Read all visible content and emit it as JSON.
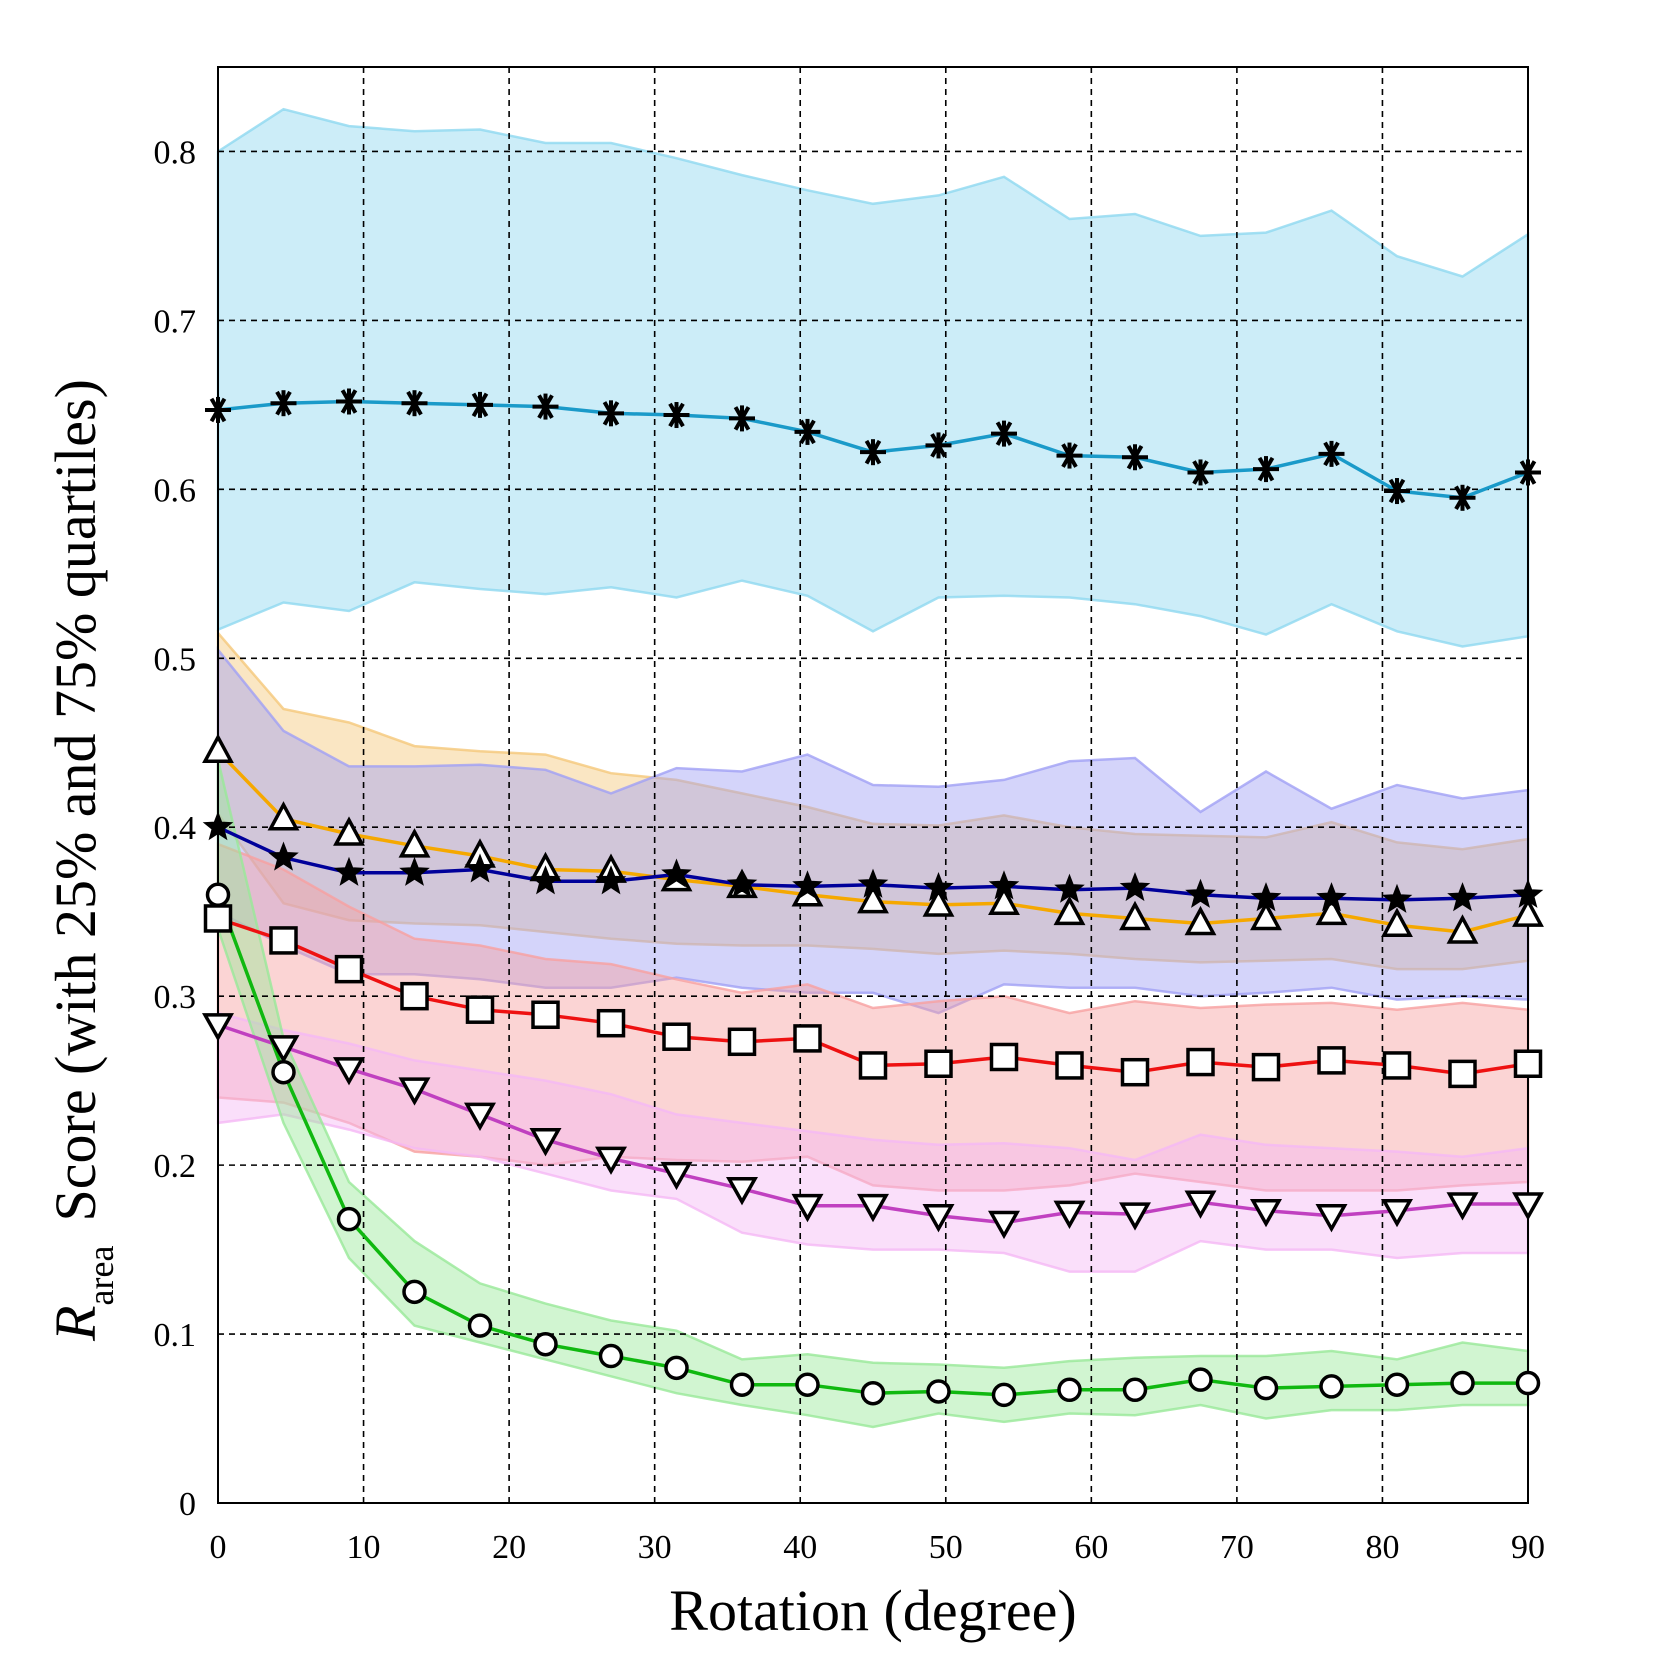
{
  "chart_data": {
    "type": "line",
    "xlabel": "Rotation (degree)",
    "ylabel_symbol": "R",
    "ylabel_subscript": "area",
    "ylabel_text": "Score (with 25% and 75% quartiles)",
    "xlim": [
      0,
      90
    ],
    "ylim": [
      0,
      0.85
    ],
    "xticks": [
      0,
      10,
      20,
      30,
      40,
      50,
      60,
      70,
      80,
      90
    ],
    "yticks": [
      0,
      0.1,
      0.2,
      0.3,
      0.4,
      0.5,
      0.6,
      0.7,
      0.8
    ],
    "xtick_labels": [
      "0",
      "10",
      "20",
      "30",
      "40",
      "50",
      "60",
      "70",
      "80",
      "90"
    ],
    "ytick_labels": [
      "0",
      "0.1",
      "0.2",
      "0.3",
      "0.4",
      "0.5",
      "0.6",
      "0.7",
      "0.8"
    ],
    "grid": true,
    "x": [
      0,
      4.5,
      9,
      13.5,
      18,
      22.5,
      27,
      31.5,
      36,
      40.5,
      45,
      49.5,
      54,
      58.5,
      63,
      67.5,
      72,
      76.5,
      81,
      85.5,
      90
    ],
    "series": [
      {
        "marker": "asterisk",
        "color": "#1a9ac9",
        "band_color": "#8fd8f0",
        "values": [
          0.647,
          0.651,
          0.652,
          0.651,
          0.65,
          0.649,
          0.645,
          0.644,
          0.642,
          0.634,
          0.622,
          0.626,
          0.633,
          0.62,
          0.619,
          0.61,
          0.612,
          0.621,
          0.599,
          0.595,
          0.61
        ],
        "q75": [
          0.8,
          0.825,
          0.815,
          0.812,
          0.813,
          0.805,
          0.805,
          0.796,
          0.786,
          0.777,
          0.769,
          0.774,
          0.785,
          0.76,
          0.763,
          0.75,
          0.752,
          0.765,
          0.738,
          0.726,
          0.751
        ],
        "q25": [
          0.517,
          0.533,
          0.528,
          0.545,
          0.541,
          0.538,
          0.542,
          0.536,
          0.546,
          0.537,
          0.516,
          0.536,
          0.537,
          0.536,
          0.532,
          0.525,
          0.514,
          0.532,
          0.516,
          0.507,
          0.513
        ]
      },
      {
        "marker": "triangle-up",
        "color": "#f5a800",
        "band_color": "#f5c87a",
        "values": [
          0.445,
          0.405,
          0.396,
          0.389,
          0.383,
          0.375,
          0.374,
          0.369,
          0.365,
          0.36,
          0.356,
          0.354,
          0.355,
          0.349,
          0.346,
          0.343,
          0.346,
          0.349,
          0.342,
          0.338,
          0.348
        ],
        "q75": [
          0.515,
          0.47,
          0.462,
          0.448,
          0.445,
          0.443,
          0.432,
          0.428,
          0.42,
          0.412,
          0.402,
          0.401,
          0.407,
          0.4,
          0.396,
          0.395,
          0.394,
          0.403,
          0.391,
          0.387,
          0.393
        ],
        "q25": [
          0.408,
          0.355,
          0.345,
          0.343,
          0.342,
          0.338,
          0.334,
          0.331,
          0.33,
          0.33,
          0.328,
          0.325,
          0.327,
          0.325,
          0.322,
          0.32,
          0.321,
          0.322,
          0.316,
          0.316,
          0.321
        ]
      },
      {
        "marker": "star",
        "color": "#00009a",
        "band_color": "#a0a0f5",
        "values": [
          0.4,
          0.382,
          0.373,
          0.373,
          0.375,
          0.368,
          0.368,
          0.372,
          0.366,
          0.365,
          0.366,
          0.364,
          0.365,
          0.363,
          0.364,
          0.36,
          0.358,
          0.358,
          0.357,
          0.358,
          0.36
        ],
        "q75": [
          0.505,
          0.457,
          0.436,
          0.436,
          0.437,
          0.434,
          0.42,
          0.435,
          0.433,
          0.443,
          0.425,
          0.424,
          0.428,
          0.439,
          0.441,
          0.409,
          0.433,
          0.411,
          0.425,
          0.417,
          0.422
        ],
        "q25": [
          0.35,
          0.33,
          0.313,
          0.313,
          0.31,
          0.305,
          0.305,
          0.311,
          0.305,
          0.302,
          0.302,
          0.29,
          0.307,
          0.305,
          0.305,
          0.3,
          0.302,
          0.305,
          0.298,
          0.3,
          0.298
        ]
      },
      {
        "marker": "square",
        "color": "#ee1111",
        "band_color": "#f7a0a0",
        "values": [
          0.346,
          0.333,
          0.316,
          0.3,
          0.292,
          0.289,
          0.284,
          0.276,
          0.273,
          0.275,
          0.259,
          0.26,
          0.264,
          0.259,
          0.255,
          0.261,
          0.258,
          0.262,
          0.259,
          0.254,
          0.26
        ],
        "q75": [
          0.39,
          0.375,
          0.353,
          0.334,
          0.33,
          0.322,
          0.319,
          0.31,
          0.302,
          0.307,
          0.293,
          0.297,
          0.3,
          0.29,
          0.297,
          0.293,
          0.295,
          0.296,
          0.292,
          0.296,
          0.292
        ],
        "q25": [
          0.24,
          0.237,
          0.225,
          0.208,
          0.205,
          0.2,
          0.205,
          0.203,
          0.202,
          0.205,
          0.188,
          0.185,
          0.185,
          0.188,
          0.195,
          0.19,
          0.185,
          0.185,
          0.185,
          0.188,
          0.19
        ]
      },
      {
        "marker": "triangle-down",
        "color": "#c040c0",
        "band_color": "#f5b8f5",
        "values": [
          0.283,
          0.27,
          0.257,
          0.245,
          0.23,
          0.215,
          0.204,
          0.195,
          0.186,
          0.176,
          0.176,
          0.17,
          0.166,
          0.172,
          0.171,
          0.178,
          0.173,
          0.17,
          0.173,
          0.177,
          0.177
        ],
        "q75": [
          0.29,
          0.28,
          0.272,
          0.262,
          0.256,
          0.25,
          0.242,
          0.23,
          0.225,
          0.22,
          0.215,
          0.212,
          0.213,
          0.21,
          0.203,
          0.218,
          0.212,
          0.21,
          0.208,
          0.205,
          0.21
        ],
        "q25": [
          0.225,
          0.23,
          0.221,
          0.21,
          0.205,
          0.195,
          0.185,
          0.18,
          0.16,
          0.153,
          0.15,
          0.15,
          0.148,
          0.137,
          0.137,
          0.155,
          0.15,
          0.15,
          0.145,
          0.148,
          0.148
        ]
      },
      {
        "marker": "circle",
        "color": "#10b810",
        "band_color": "#98e898",
        "values": [
          0.36,
          0.255,
          0.168,
          0.125,
          0.105,
          0.094,
          0.087,
          0.08,
          0.07,
          0.07,
          0.065,
          0.066,
          0.064,
          0.067,
          0.067,
          0.073,
          0.068,
          0.069,
          0.07,
          0.071,
          0.071
        ],
        "q75": [
          0.44,
          0.275,
          0.19,
          0.155,
          0.13,
          0.118,
          0.108,
          0.102,
          0.085,
          0.088,
          0.083,
          0.082,
          0.08,
          0.084,
          0.086,
          0.087,
          0.087,
          0.09,
          0.085,
          0.095,
          0.09
        ],
        "q25": [
          0.34,
          0.225,
          0.145,
          0.105,
          0.095,
          0.085,
          0.075,
          0.065,
          0.058,
          0.052,
          0.045,
          0.053,
          0.048,
          0.053,
          0.052,
          0.058,
          0.05,
          0.055,
          0.055,
          0.058,
          0.058
        ]
      }
    ]
  }
}
